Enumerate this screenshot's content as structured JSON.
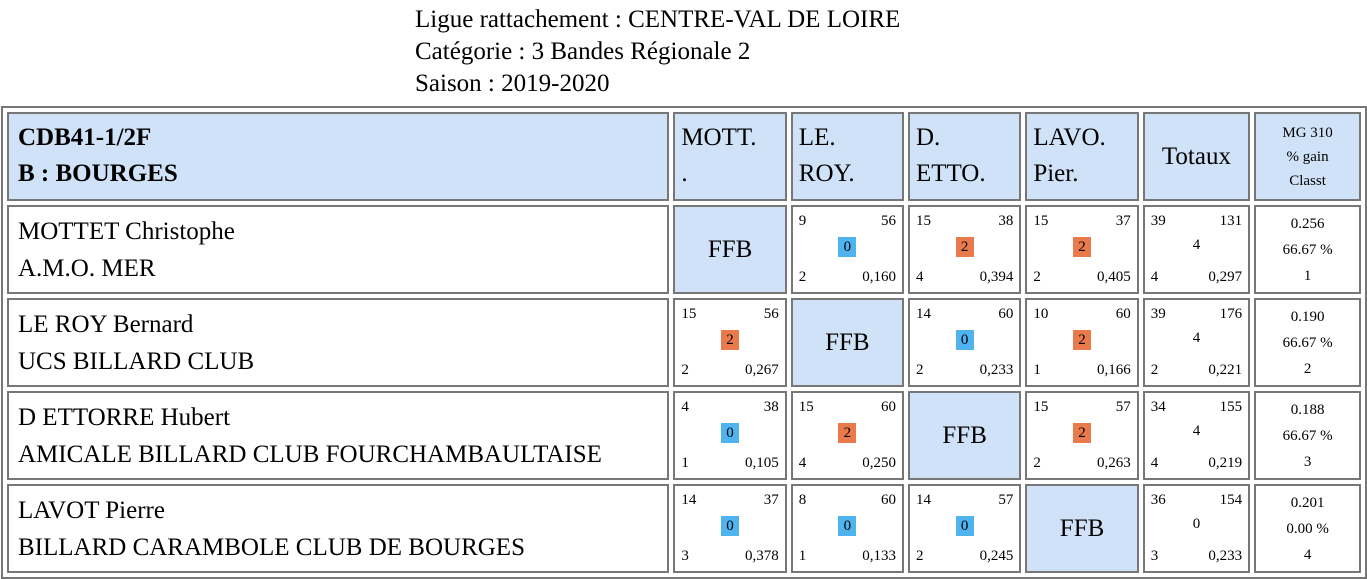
{
  "header": {
    "ligue": "Ligue rattachement : CENTRE-VAL DE LOIRE",
    "categorie": "Catégorie : 3 Bandes Régionale 2",
    "saison": "Saison : 2019-2020"
  },
  "table": {
    "group_code": "CDB41-1/2F",
    "group_name": "B : BOURGES",
    "col_headers": [
      {
        "line1": "MOTT.",
        "line2": "."
      },
      {
        "line1": "LE.",
        "line2": "ROY."
      },
      {
        "line1": "D.",
        "line2": "ETTO."
      },
      {
        "line1": "LAVO.",
        "line2": "Pier."
      }
    ],
    "totaux_label": "Totaux",
    "stats_header": {
      "line1": "MG 310",
      "line2": "% gain",
      "line3": "Classt"
    },
    "ffb_label": "FFB",
    "colors": {
      "header_bg": "#cfe2f7",
      "badge_zero": "#4fb3ef",
      "badge_two": "#e87a4c"
    },
    "rows": [
      {
        "name": "MOTTET Christophe",
        "club": "A.M.O. MER",
        "cells": [
          null,
          {
            "tl": "9",
            "tr": "56",
            "mid": "0",
            "bl": "2",
            "br": "0,160"
          },
          {
            "tl": "15",
            "tr": "38",
            "mid": "2",
            "bl": "4",
            "br": "0,394"
          },
          {
            "tl": "15",
            "tr": "37",
            "mid": "2",
            "bl": "2",
            "br": "0,405"
          }
        ],
        "totals": {
          "tl": "39",
          "tr": "131",
          "mid": "4",
          "bl": "4",
          "br": "0,297"
        },
        "stats": {
          "mg": "0.256",
          "gain": "66.67 %",
          "classt": "1"
        }
      },
      {
        "name": "LE ROY Bernard",
        "club": "UCS BILLARD CLUB",
        "cells": [
          {
            "tl": "15",
            "tr": "56",
            "mid": "2",
            "bl": "2",
            "br": "0,267"
          },
          null,
          {
            "tl": "14",
            "tr": "60",
            "mid": "0",
            "bl": "2",
            "br": "0,233"
          },
          {
            "tl": "10",
            "tr": "60",
            "mid": "2",
            "bl": "1",
            "br": "0,166"
          }
        ],
        "totals": {
          "tl": "39",
          "tr": "176",
          "mid": "4",
          "bl": "2",
          "br": "0,221"
        },
        "stats": {
          "mg": "0.190",
          "gain": "66.67 %",
          "classt": "2"
        }
      },
      {
        "name": "D ETTORRE Hubert",
        "club": "AMICALE BILLARD CLUB FOURCHAMBAULTAISE",
        "cells": [
          {
            "tl": "4",
            "tr": "38",
            "mid": "0",
            "bl": "1",
            "br": "0,105"
          },
          {
            "tl": "15",
            "tr": "60",
            "mid": "2",
            "bl": "4",
            "br": "0,250"
          },
          null,
          {
            "tl": "15",
            "tr": "57",
            "mid": "2",
            "bl": "2",
            "br": "0,263"
          }
        ],
        "totals": {
          "tl": "34",
          "tr": "155",
          "mid": "4",
          "bl": "4",
          "br": "0,219"
        },
        "stats": {
          "mg": "0.188",
          "gain": "66.67 %",
          "classt": "3"
        }
      },
      {
        "name": "LAVOT Pierre",
        "club": "BILLARD CARAMBOLE CLUB DE BOURGES",
        "cells": [
          {
            "tl": "14",
            "tr": "37",
            "mid": "0",
            "bl": "3",
            "br": "0,378"
          },
          {
            "tl": "8",
            "tr": "60",
            "mid": "0",
            "bl": "1",
            "br": "0,133"
          },
          {
            "tl": "14",
            "tr": "57",
            "mid": "0",
            "bl": "2",
            "br": "0,245"
          },
          null
        ],
        "totals": {
          "tl": "36",
          "tr": "154",
          "mid": "0",
          "bl": "3",
          "br": "0,233"
        },
        "stats": {
          "mg": "0.201",
          "gain": "0.00 %",
          "classt": "4"
        }
      }
    ]
  }
}
